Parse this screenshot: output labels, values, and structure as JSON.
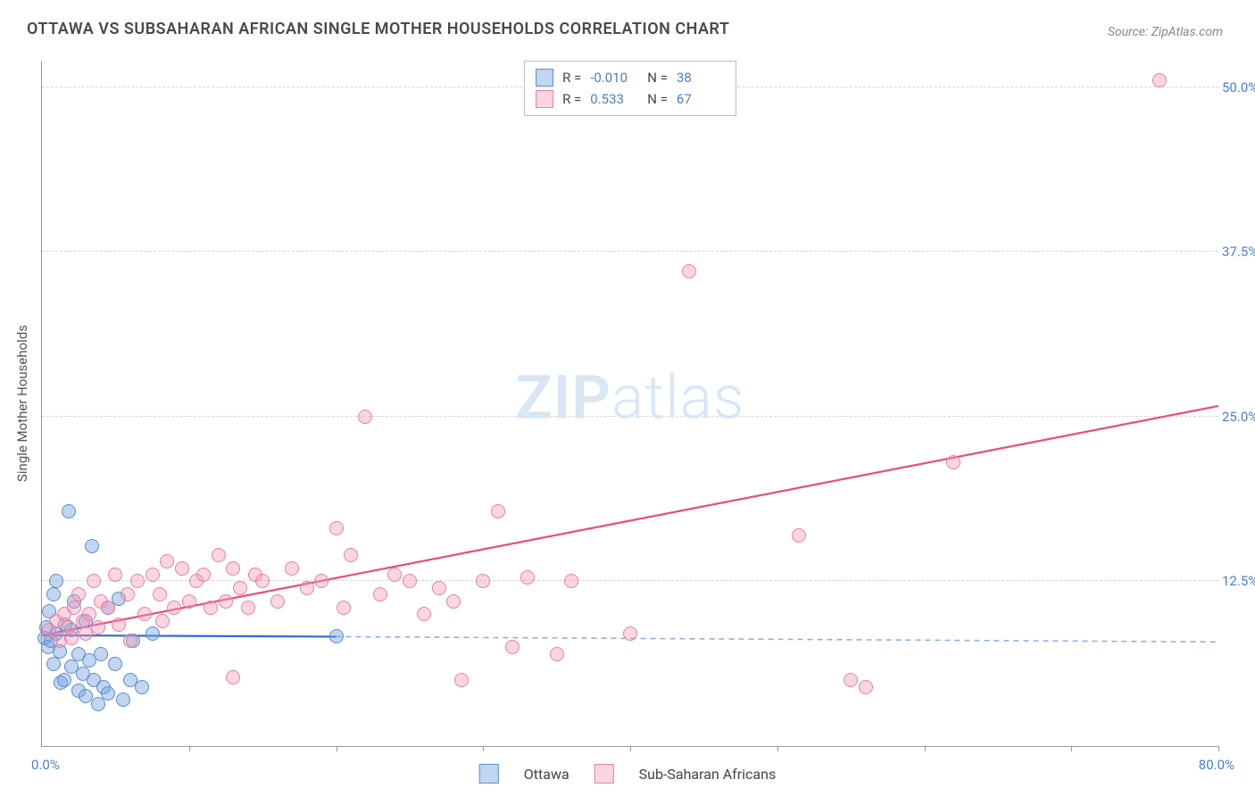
{
  "title": "OTTAWA VS SUBSAHARAN AFRICAN SINGLE MOTHER HOUSEHOLDS CORRELATION CHART",
  "source": "Source: ZipAtlas.com",
  "watermark": {
    "bold": "ZIP",
    "light": "atlas",
    "color": "#d9e6f5"
  },
  "chart": {
    "type": "scatter",
    "background_color": "#ffffff",
    "axis_color": "#999999",
    "grid_color": "#d6d6d6",
    "tick_label_color": "#4a7dd6",
    "axis_title_color": "#555555",
    "y_axis_title": "Single Mother Households",
    "xlim": [
      0,
      80
    ],
    "ylim": [
      0,
      52
    ],
    "x_start_label": "0.0%",
    "x_end_label": "80.0%",
    "x_tick_positions": [
      10,
      20,
      30,
      40,
      50,
      60,
      70,
      80
    ],
    "y_ticks": [
      {
        "value": 12.5,
        "label": "12.5%"
      },
      {
        "value": 25.0,
        "label": "25.0%"
      },
      {
        "value": 37.5,
        "label": "37.5%"
      },
      {
        "value": 50.0,
        "label": "50.0%"
      }
    ],
    "marker_radius": 8,
    "marker_border_width": 1.5,
    "trend_line_width": 2.2,
    "trend_dash_pattern": "6,5"
  },
  "series": [
    {
      "key": "ottawa",
      "label": "Ottawa",
      "fill_color": "rgba(119,164,221,0.45)",
      "stroke_color": "#5a8cd0",
      "line_color": "#2f6bd0",
      "r_value": "-0.010",
      "n_value": "38",
      "trend": {
        "x1": 0,
        "y1": 8.4,
        "x2": 20,
        "y2": 8.3,
        "solid_until_x": 20,
        "dash_to_x": 80,
        "dash_to_y": 7.9
      },
      "points": [
        [
          0.2,
          8.2
        ],
        [
          0.3,
          9.0
        ],
        [
          0.4,
          7.5
        ],
        [
          0.5,
          10.2
        ],
        [
          0.6,
          8.0
        ],
        [
          0.8,
          11.5
        ],
        [
          0.8,
          6.2
        ],
        [
          1.0,
          8.5
        ],
        [
          1.0,
          12.5
        ],
        [
          1.2,
          7.2
        ],
        [
          1.3,
          4.8
        ],
        [
          1.5,
          5.0
        ],
        [
          1.6,
          9.2
        ],
        [
          1.8,
          17.8
        ],
        [
          2.0,
          6.0
        ],
        [
          2.0,
          8.8
        ],
        [
          2.2,
          11.0
        ],
        [
          2.5,
          4.2
        ],
        [
          2.5,
          7.0
        ],
        [
          2.8,
          5.5
        ],
        [
          3.0,
          3.8
        ],
        [
          3.0,
          9.5
        ],
        [
          3.2,
          6.5
        ],
        [
          3.4,
          15.2
        ],
        [
          3.5,
          5.0
        ],
        [
          3.8,
          3.2
        ],
        [
          4.0,
          7.0
        ],
        [
          4.2,
          4.5
        ],
        [
          4.5,
          10.5
        ],
        [
          4.5,
          4.0
        ],
        [
          5.0,
          6.2
        ],
        [
          5.2,
          11.2
        ],
        [
          5.5,
          3.5
        ],
        [
          6.0,
          5.0
        ],
        [
          6.2,
          8.0
        ],
        [
          6.8,
          4.5
        ],
        [
          7.5,
          8.5
        ],
        [
          20.0,
          8.3
        ]
      ]
    },
    {
      "key": "ssa",
      "label": "Sub-Saharan Africans",
      "fill_color": "rgba(244,153,180,0.40)",
      "stroke_color": "#e97fa3",
      "line_color": "#e84c81",
      "r_value": "0.533",
      "n_value": "67",
      "trend": {
        "x1": 0,
        "y1": 8.4,
        "x2": 80,
        "y2": 25.8,
        "solid_until_x": 80
      },
      "points": [
        [
          0.5,
          8.8
        ],
        [
          1.0,
          9.5
        ],
        [
          1.2,
          8.0
        ],
        [
          1.5,
          10.0
        ],
        [
          1.8,
          9.0
        ],
        [
          2.0,
          8.2
        ],
        [
          2.2,
          10.5
        ],
        [
          2.5,
          11.5
        ],
        [
          2.8,
          9.5
        ],
        [
          3.0,
          8.5
        ],
        [
          3.2,
          10.0
        ],
        [
          3.5,
          12.5
        ],
        [
          3.8,
          9.0
        ],
        [
          4.0,
          11.0
        ],
        [
          4.5,
          10.5
        ],
        [
          5.0,
          13.0
        ],
        [
          5.2,
          9.2
        ],
        [
          5.8,
          11.5
        ],
        [
          6.0,
          8.0
        ],
        [
          6.5,
          12.5
        ],
        [
          7.0,
          10.0
        ],
        [
          7.5,
          13.0
        ],
        [
          8.0,
          11.5
        ],
        [
          8.2,
          9.5
        ],
        [
          8.5,
          14.0
        ],
        [
          9.0,
          10.5
        ],
        [
          9.5,
          13.5
        ],
        [
          10.0,
          11.0
        ],
        [
          10.5,
          12.5
        ],
        [
          11.0,
          13.0
        ],
        [
          11.5,
          10.5
        ],
        [
          12.0,
          14.5
        ],
        [
          12.5,
          11.0
        ],
        [
          13.0,
          13.5
        ],
        [
          13.5,
          12.0
        ],
        [
          14.0,
          10.5
        ],
        [
          14.5,
          13.0
        ],
        [
          15.0,
          12.5
        ],
        [
          16.0,
          11.0
        ],
        [
          17.0,
          13.5
        ],
        [
          18.0,
          12.0
        ],
        [
          19.0,
          12.5
        ],
        [
          20.0,
          16.5
        ],
        [
          20.5,
          10.5
        ],
        [
          21.0,
          14.5
        ],
        [
          22.0,
          25.0
        ],
        [
          23.0,
          11.5
        ],
        [
          24.0,
          13.0
        ],
        [
          25.0,
          12.5
        ],
        [
          26.0,
          10.0
        ],
        [
          27.0,
          12.0
        ],
        [
          28.0,
          11.0
        ],
        [
          28.5,
          5.0
        ],
        [
          30.0,
          12.5
        ],
        [
          31.0,
          17.8
        ],
        [
          32.0,
          7.5
        ],
        [
          33.0,
          12.8
        ],
        [
          35.0,
          7.0
        ],
        [
          36.0,
          12.5
        ],
        [
          40.0,
          8.5
        ],
        [
          44.0,
          36.0
        ],
        [
          51.5,
          16.0
        ],
        [
          55.0,
          5.0
        ],
        [
          56.0,
          4.5
        ],
        [
          62.0,
          21.5
        ],
        [
          76.0,
          50.5
        ],
        [
          13.0,
          5.2
        ]
      ]
    }
  ],
  "stat_legend": {
    "r_label": "R =",
    "n_label": "N ="
  },
  "bottom_legend_labels": [
    "Ottawa",
    "Sub-Saharan Africans"
  ]
}
